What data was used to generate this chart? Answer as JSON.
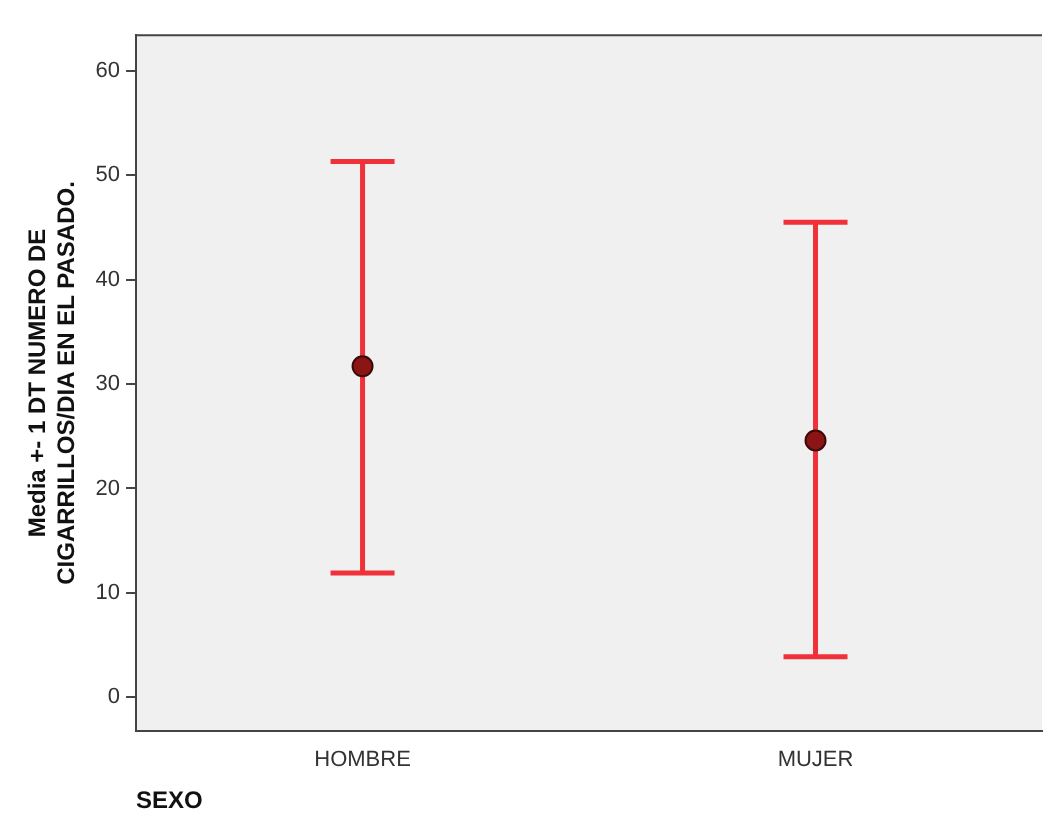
{
  "chart_data": {
    "type": "scatter",
    "xlabel": "SEXO",
    "ylabel": "Media +- 1 DT NUMERO DE CIGARRILLOS/DIA EN EL PASADO.",
    "categories": [
      "HOMBRE",
      "MUJER"
    ],
    "series": [
      {
        "color": "#8b1414",
        "values": [
          31.7,
          24.6
        ],
        "errors": [
          [
            11.9,
            51.3
          ],
          [
            3.9,
            45.5
          ]
        ]
      }
    ],
    "ylim": [
      -3.2,
      63.4
    ],
    "yticks": [
      0,
      10,
      20,
      30,
      40,
      50,
      60
    ],
    "grid": false,
    "legend": false,
    "marker": "circle"
  }
}
